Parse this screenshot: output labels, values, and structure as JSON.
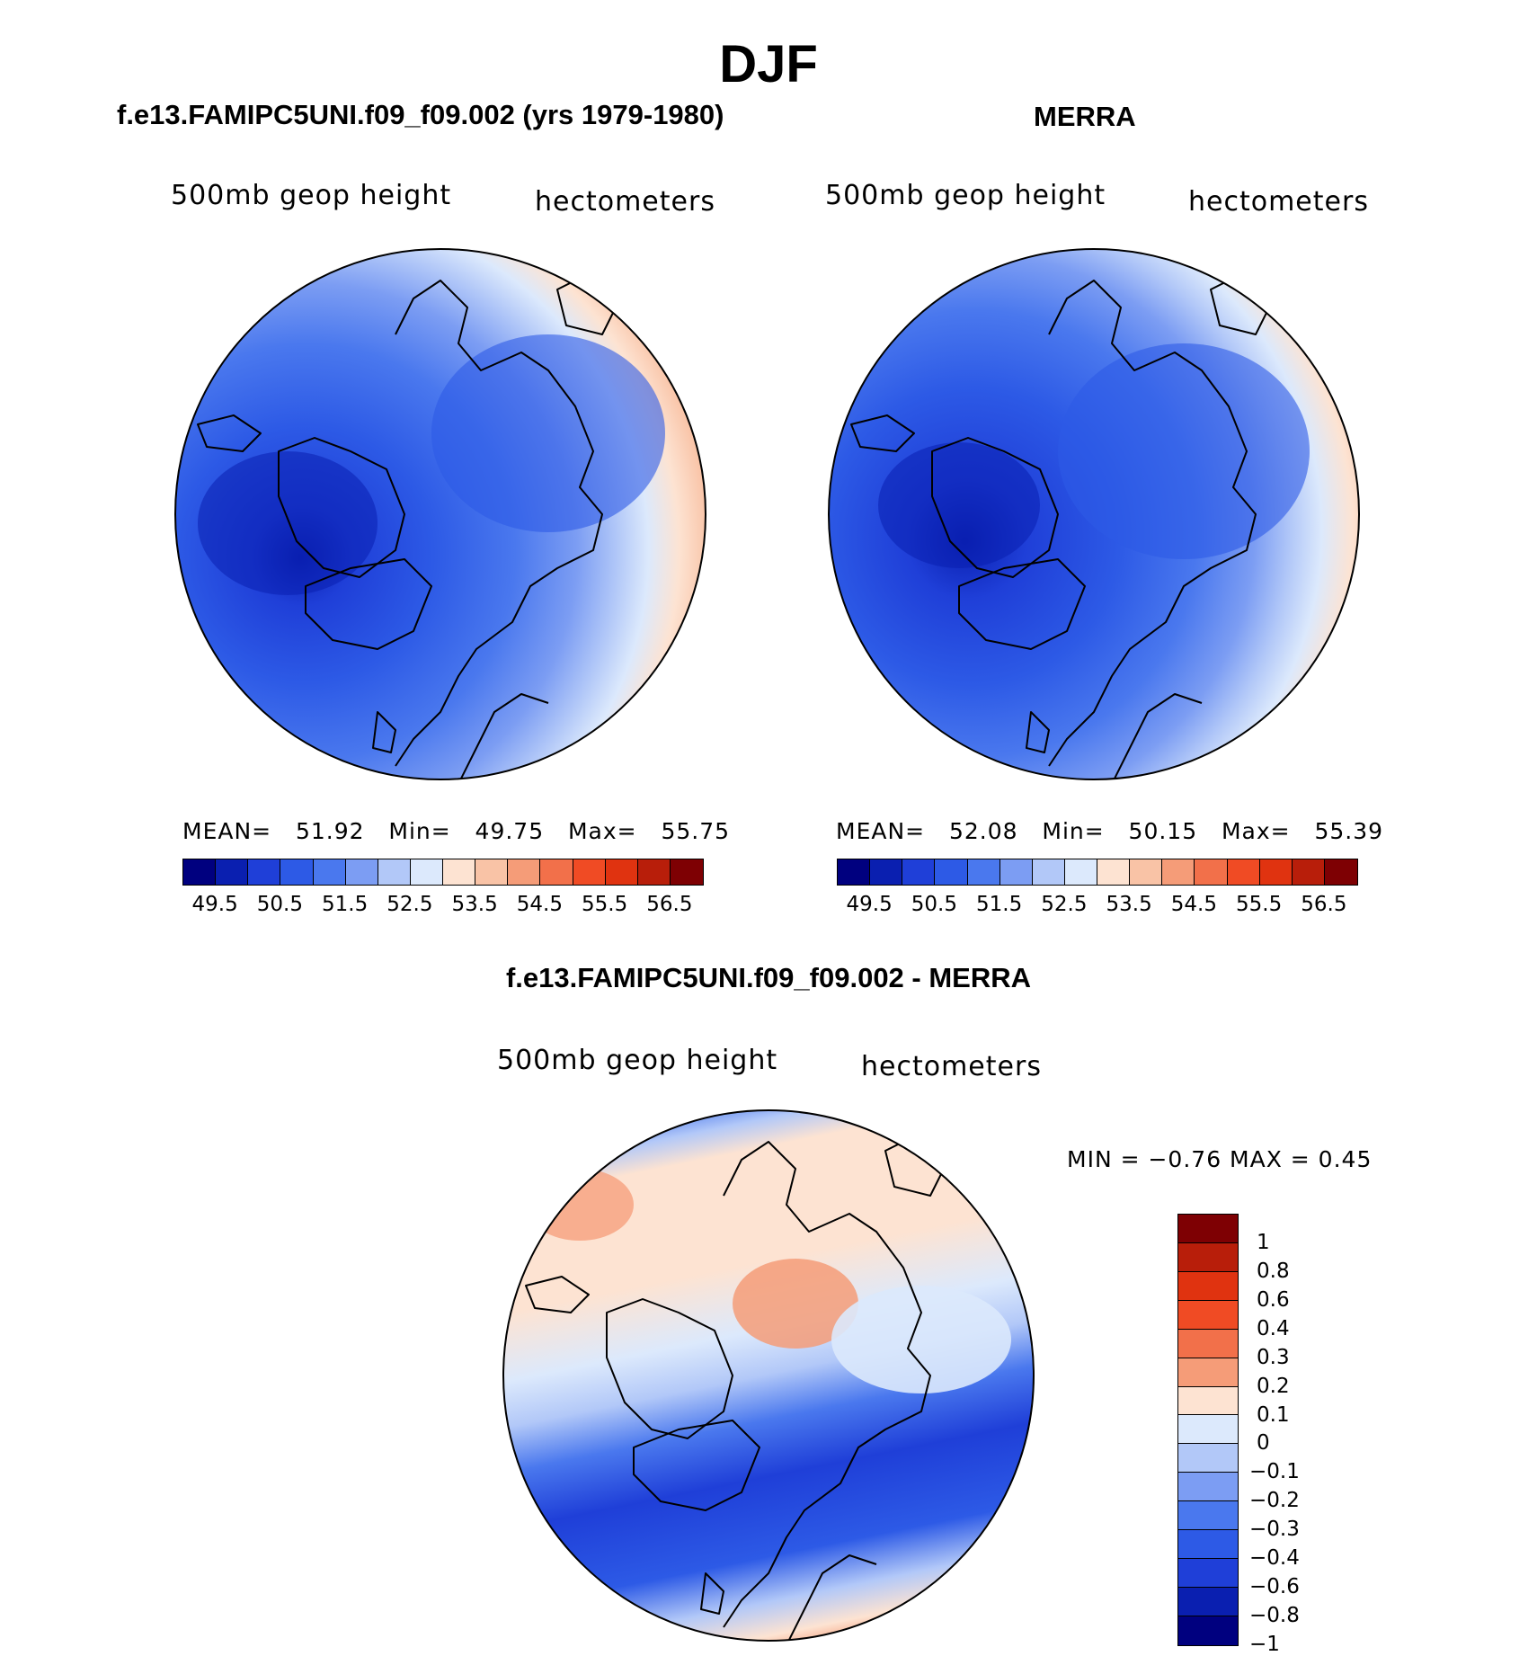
{
  "figure": {
    "title": "DJF",
    "panels": [
      {
        "id": "model",
        "title": "f.e13.FAMIPC5UNI.f09_f09.002 (yrs 1979-1980)",
        "variable": "500mb geop height",
        "units": "hectometers",
        "stats": {
          "mean_label": "MEAN=",
          "mean": "51.92",
          "min_label": "Min=",
          "min": "49.75",
          "max_label": "Max=",
          "max": "55.75"
        },
        "colorbar_ticks": [
          "49.5",
          "50.5",
          "51.5",
          "52.5",
          "53.5",
          "54.5",
          "55.5",
          "56.5"
        ]
      },
      {
        "id": "obs",
        "title": "MERRA",
        "variable": "500mb geop height",
        "units": "hectometers",
        "stats": {
          "mean_label": "MEAN=",
          "mean": "52.08",
          "min_label": "Min=",
          "min": "50.15",
          "max_label": "Max=",
          "max": "55.39"
        },
        "colorbar_ticks": [
          "49.5",
          "50.5",
          "51.5",
          "52.5",
          "53.5",
          "54.5",
          "55.5",
          "56.5"
        ]
      }
    ],
    "difference": {
      "title": "f.e13.FAMIPC5UNI.f09_f09.002 - MERRA",
      "variable": "500mb geop height",
      "units": "hectometers",
      "minmax": "MIN =   −0.76 MAX =    0.45",
      "colorbar_ticks": [
        "1",
        "0.8",
        "0.6",
        "0.4",
        "0.3",
        "0.2",
        "0.1",
        "0",
        "−0.1",
        "−0.2",
        "−0.3",
        "−0.4",
        "−0.6",
        "−0.8",
        "−1"
      ]
    }
  },
  "colors": {
    "field_scale": [
      "#00007f",
      "#0a1fb0",
      "#1f3fd8",
      "#2d5ae6",
      "#4a78ee",
      "#7c9df3",
      "#b2c8f8",
      "#dce9fc",
      "#fde3d2",
      "#f9c3a6",
      "#f59c78",
      "#f2704a",
      "#f04b24",
      "#e03310",
      "#b81e0a",
      "#7e0003"
    ],
    "diff_scale": [
      "#7e0003",
      "#b81e0a",
      "#e03310",
      "#f04b24",
      "#f2704a",
      "#f59c78",
      "#fde3d2",
      "#dce9fc",
      "#b2c8f8",
      "#7c9df3",
      "#4a78ee",
      "#2d5ae6",
      "#1f3fd8",
      "#0a1fb0",
      "#00007f"
    ],
    "coastline": "#000000"
  }
}
